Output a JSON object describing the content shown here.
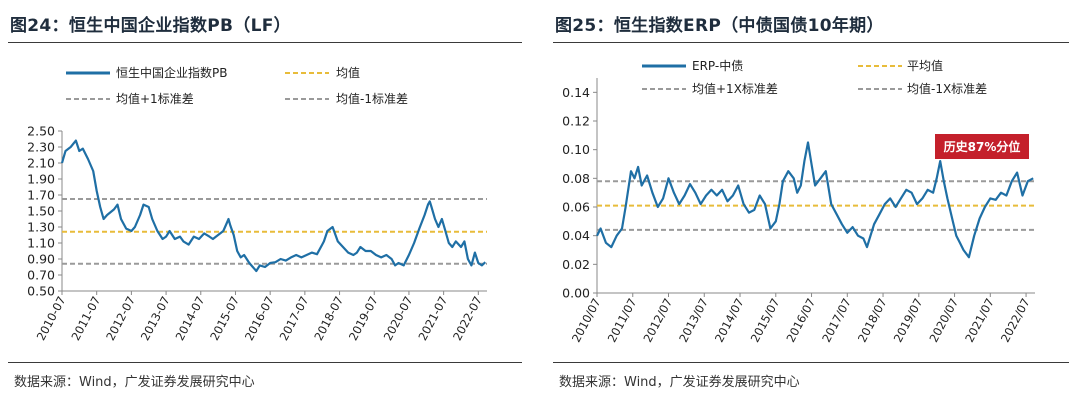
{
  "figures": [
    {
      "title": "图24：恒生中国企业指数PB（LF）",
      "source": "数据来源：Wind，广发证券发展研究中心",
      "colors": {
        "series": "#1f6fa5",
        "mean": "#e8bc3a",
        "band": "#9a9a9a"
      },
      "chart_data": {
        "type": "line",
        "title": "恒生中国企业指数PB（LF）",
        "ylim": [
          0.5,
          2.5
        ],
        "yticks": [
          "2.50",
          "2.30",
          "2.10",
          "1.90",
          "1.70",
          "1.50",
          "1.30",
          "1.10",
          "0.90",
          "0.70",
          "0.50"
        ],
        "xticks": [
          "2010-07",
          "2011-07",
          "2012-07",
          "2013-07",
          "2014-07",
          "2015-07",
          "2016-07",
          "2017-07",
          "2018-07",
          "2019-07",
          "2020-07",
          "2021-07",
          "2022-07"
        ],
        "legend": [
          "恒生中国企业指数PB",
          "均值",
          "均值+1标准差",
          "均值-1标准差"
        ],
        "reference_lines": {
          "mean": 1.24,
          "plus_1sd": 1.65,
          "minus_1sd": 0.84
        },
        "series": [
          {
            "name": "恒生中国企业指数PB",
            "x": [
              2010.5,
              2010.6,
              2010.75,
              2010.9,
              2011.0,
              2011.1,
              2011.25,
              2011.4,
              2011.5,
              2011.6,
              2011.7,
              2011.8,
              2012.0,
              2012.1,
              2012.2,
              2012.35,
              2012.5,
              2012.6,
              2012.75,
              2012.85,
              2013.0,
              2013.1,
              2013.25,
              2013.4,
              2013.5,
              2013.6,
              2013.75,
              2013.9,
              2014.0,
              2014.15,
              2014.3,
              2014.45,
              2014.6,
              2014.75,
              2014.85,
              2015.0,
              2015.15,
              2015.25,
              2015.3,
              2015.35,
              2015.45,
              2015.55,
              2015.65,
              2015.75,
              2015.9,
              2016.0,
              2016.1,
              2016.2,
              2016.35,
              2016.5,
              2016.65,
              2016.8,
              2016.95,
              2017.1,
              2017.25,
              2017.4,
              2017.55,
              2017.7,
              2017.85,
              2018.0,
              2018.05,
              2018.15,
              2018.3,
              2018.45,
              2018.6,
              2018.75,
              2018.9,
              2019.0,
              2019.1,
              2019.25,
              2019.4,
              2019.55,
              2019.7,
              2019.85,
              2020.0,
              2020.1,
              2020.2,
              2020.35,
              2020.5,
              2020.65,
              2020.8,
              2020.95,
              2021.05,
              2021.1,
              2021.15,
              2021.25,
              2021.35,
              2021.45,
              2021.55,
              2021.65,
              2021.75,
              2021.85,
              2022.0,
              2022.1,
              2022.2,
              2022.3,
              2022.4,
              2022.5,
              2022.6,
              2022.7
            ],
            "values": [
              2.1,
              2.25,
              2.3,
              2.38,
              2.25,
              2.28,
              2.15,
              2.0,
              1.75,
              1.55,
              1.4,
              1.45,
              1.52,
              1.58,
              1.4,
              1.28,
              1.25,
              1.3,
              1.45,
              1.58,
              1.55,
              1.4,
              1.25,
              1.15,
              1.18,
              1.25,
              1.15,
              1.18,
              1.12,
              1.08,
              1.18,
              1.15,
              1.22,
              1.18,
              1.15,
              1.2,
              1.25,
              1.35,
              1.4,
              1.32,
              1.2,
              1.0,
              0.92,
              0.95,
              0.85,
              0.8,
              0.75,
              0.82,
              0.8,
              0.85,
              0.86,
              0.9,
              0.88,
              0.92,
              0.95,
              0.92,
              0.95,
              0.98,
              0.96,
              1.08,
              1.12,
              1.25,
              1.3,
              1.12,
              1.05,
              0.98,
              0.95,
              0.98,
              1.05,
              1.0,
              1.0,
              0.95,
              0.92,
              0.95,
              0.9,
              0.82,
              0.85,
              0.82,
              0.95,
              1.1,
              1.28,
              1.45,
              1.58,
              1.62,
              1.55,
              1.4,
              1.3,
              1.4,
              1.25,
              1.1,
              1.05,
              1.12,
              1.05,
              1.12,
              0.9,
              0.82,
              0.98,
              0.85,
              0.82,
              0.86
            ]
          }
        ]
      }
    },
    {
      "title": "图25：恒生指数ERP（中债国债10年期）",
      "source": "数据来源：Wind，广发证券发展研究中心",
      "callout": "历史87%分位",
      "colors": {
        "series": "#1f6fa5",
        "mean": "#e8bc3a",
        "band": "#9a9a9a",
        "callout": "#c4202b"
      },
      "chart_data": {
        "type": "line",
        "title": "恒生指数ERP（中债国债10年期）",
        "ylim": [
          0.0,
          0.15
        ],
        "yticks": [
          "0.14",
          "0.12",
          "0.10",
          "0.08",
          "0.06",
          "0.04",
          "0.02",
          "0.00"
        ],
        "xticks": [
          "2010/07",
          "2011/07",
          "2012/07",
          "2013/07",
          "2014/07",
          "2015/07",
          "2016/07",
          "2017/07",
          "2018/07",
          "2019/07",
          "2020/07",
          "2021/07",
          "2022/07"
        ],
        "legend": [
          "ERP-中债",
          "平均值",
          "均值+1X标准差",
          "均值-1X标准差"
        ],
        "reference_lines": {
          "mean": 0.061,
          "plus_1sd": 0.078,
          "minus_1sd": 0.044
        },
        "series": [
          {
            "name": "ERP-中债",
            "x": [
              2010.5,
              2010.6,
              2010.75,
              2010.9,
              2011.05,
              2011.2,
              2011.3,
              2011.45,
              2011.55,
              2011.65,
              2011.75,
              2011.9,
              2012.05,
              2012.2,
              2012.35,
              2012.5,
              2012.65,
              2012.8,
              2012.95,
              2013.1,
              2013.25,
              2013.4,
              2013.55,
              2013.7,
              2013.85,
              2014.0,
              2014.15,
              2014.3,
              2014.45,
              2014.6,
              2014.75,
              2014.9,
              2015.05,
              2015.2,
              2015.35,
              2015.5,
              2015.6,
              2015.7,
              2015.85,
              2016.0,
              2016.1,
              2016.2,
              2016.3,
              2016.4,
              2016.5,
              2016.6,
              2016.75,
              2016.9,
              2017.05,
              2017.2,
              2017.35,
              2017.5,
              2017.65,
              2017.8,
              2017.95,
              2018.05,
              2018.15,
              2018.25,
              2018.4,
              2018.55,
              2018.7,
              2018.85,
              2019.0,
              2019.15,
              2019.3,
              2019.45,
              2019.6,
              2019.75,
              2019.9,
              2020.0,
              2020.1,
              2020.2,
              2020.3,
              2020.45,
              2020.55,
              2020.65,
              2020.75,
              2020.9,
              2021.05,
              2021.2,
              2021.35,
              2021.5,
              2021.65,
              2021.8,
              2021.95,
              2022.1,
              2022.25,
              2022.4,
              2022.55,
              2022.7
            ],
            "values": [
              0.04,
              0.045,
              0.035,
              0.032,
              0.04,
              0.045,
              0.06,
              0.085,
              0.08,
              0.088,
              0.075,
              0.082,
              0.07,
              0.06,
              0.066,
              0.08,
              0.07,
              0.062,
              0.068,
              0.076,
              0.07,
              0.062,
              0.068,
              0.072,
              0.068,
              0.072,
              0.064,
              0.068,
              0.075,
              0.062,
              0.056,
              0.058,
              0.068,
              0.062,
              0.045,
              0.05,
              0.062,
              0.078,
              0.085,
              0.08,
              0.07,
              0.075,
              0.092,
              0.105,
              0.09,
              0.075,
              0.08,
              0.085,
              0.062,
              0.055,
              0.048,
              0.042,
              0.046,
              0.04,
              0.038,
              0.032,
              0.04,
              0.048,
              0.055,
              0.062,
              0.066,
              0.06,
              0.066,
              0.072,
              0.07,
              0.062,
              0.066,
              0.072,
              0.07,
              0.08,
              0.092,
              0.078,
              0.066,
              0.05,
              0.04,
              0.035,
              0.03,
              0.025,
              0.04,
              0.052,
              0.06,
              0.066,
              0.065,
              0.07,
              0.068,
              0.078,
              0.084,
              0.068,
              0.078,
              0.08
            ]
          }
        ]
      }
    }
  ]
}
